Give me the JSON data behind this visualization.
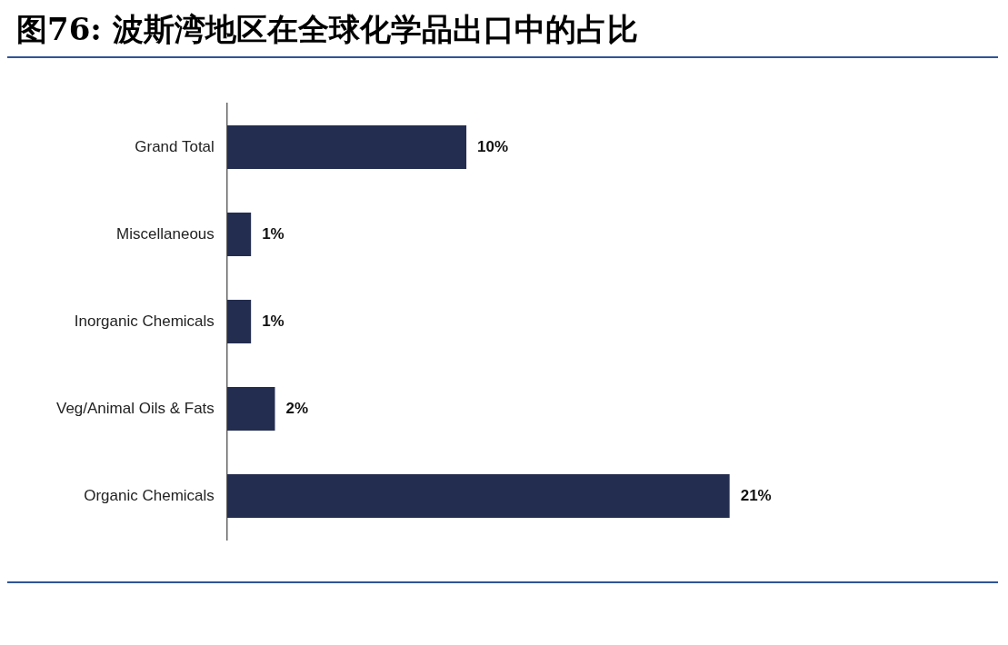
{
  "chart_data": {
    "type": "bar",
    "orientation": "horizontal",
    "title": "图76: 波斯湾地区在全球化学品出口中的占比",
    "categories": [
      "Grand Total",
      "Miscellaneous",
      "Inorganic Chemicals",
      "Veg/Animal Oils & Fats",
      "Organic Chemicals"
    ],
    "values": [
      10,
      1,
      1,
      2,
      21
    ],
    "value_labels": [
      "10%",
      "1%",
      "1%",
      "2%",
      "21%"
    ],
    "color": "#232d4f",
    "legend": false
  }
}
